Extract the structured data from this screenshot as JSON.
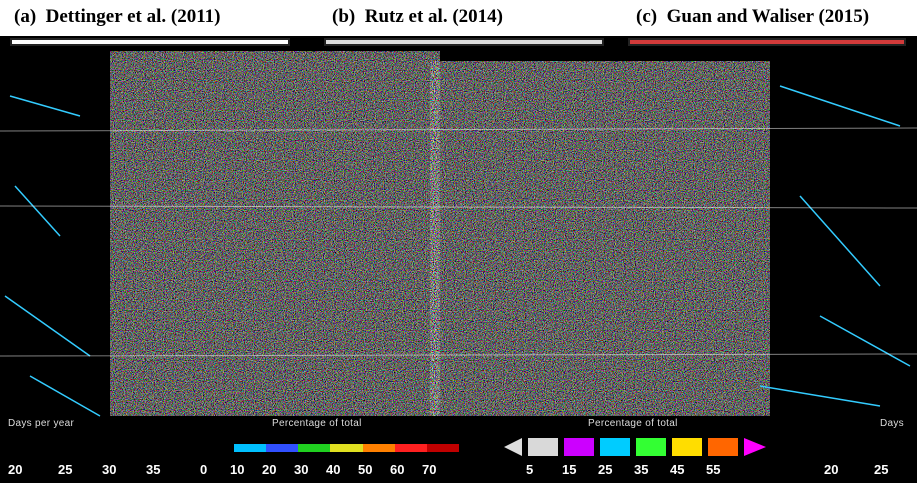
{
  "panels": [
    {
      "label": "(a)",
      "title": "Dettinger et al. (2011)"
    },
    {
      "label": "(b)",
      "title": "Rutz et al. (2014)"
    },
    {
      "label": "(c)",
      "title": "Guan and Waliser (2015)"
    }
  ],
  "legends": {
    "left": {
      "title": "Days per year",
      "ticks": [
        "20",
        "25",
        "30",
        "35"
      ]
    },
    "a": {
      "title": "Percentage of total",
      "ticks": [
        "0",
        "10",
        "20",
        "30",
        "40",
        "50",
        "60",
        "70"
      ],
      "colors": [
        "#00c0ff",
        "#3050ff",
        "#20d020",
        "#e0e020",
        "#ff8000",
        "#ff2020",
        "#c00000"
      ]
    },
    "b": {
      "title": "Percentage of total",
      "ticks": [
        "5",
        "15",
        "25",
        "35",
        "45",
        "55"
      ]
    },
    "right": {
      "title": "Days",
      "ticks": [
        "20",
        "25"
      ]
    }
  },
  "colors": {
    "background": "#000000",
    "title_text": "#000000",
    "frame": "#222222"
  }
}
